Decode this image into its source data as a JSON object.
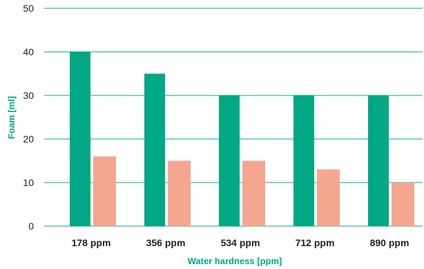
{
  "chart_data": {
    "type": "bar",
    "categories": [
      "178 ppm",
      "356 ppm",
      "534 ppm",
      "712 ppm",
      "890 ppm"
    ],
    "series": [
      {
        "values": [
          40,
          35,
          30,
          30,
          30
        ],
        "color": "#00a884"
      },
      {
        "values": [
          16,
          15,
          15,
          13,
          10
        ],
        "color": "#f4a68e"
      }
    ],
    "xlabel": "Water hardness [ppm]",
    "ylabel": "Foam [ml]",
    "ylim": [
      0,
      50
    ],
    "yticks": [
      0,
      10,
      20,
      30,
      40,
      50
    ],
    "grid": true,
    "axis_title_color": "#00a884",
    "grid_color": "#00a884"
  }
}
